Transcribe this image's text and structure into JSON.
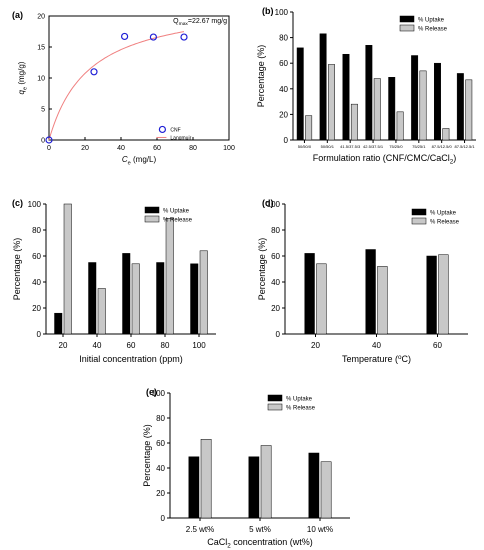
{
  "colors": {
    "uptake": "#000000",
    "release": "#c8c8c8",
    "langmuir": "#f08080",
    "cnf": "#1f1fd6"
  },
  "chart_data": [
    {
      "panel": "(a)",
      "type": "scatter",
      "annotation": "Q",
      "annotation_sub": "max",
      "annotation_rest": "=22.67 mg/g",
      "xlabel": "C",
      "xlabel_sub": "e",
      "xlabel_rest": " (mg/L)",
      "ylabel": "q",
      "ylabel_sub": "e",
      "ylabel_rest": " (mg/g)",
      "xlim": [
        0,
        100
      ],
      "ylim": [
        0,
        20
      ],
      "xticks": [
        "0",
        "20",
        "40",
        "60",
        "80",
        "100"
      ],
      "yticks": [
        "0",
        "5",
        "10",
        "15",
        "20"
      ],
      "points_name": "CNF",
      "fit_name": "Langmuir",
      "x": [
        0,
        25,
        42,
        58,
        75
      ],
      "y": [
        0,
        11,
        16.7,
        16.6,
        16.6
      ],
      "fit": {
        "qmax": 22.67,
        "KL": 0.045
      }
    },
    {
      "panel": "(b)",
      "type": "bar",
      "xlabel": "Formulation ratio (CNF/CMC/CaCl",
      "xlabel_sub": "2",
      "xlabel_rest": ")",
      "ylabel": "Percentage (%)",
      "ylim": [
        0,
        100
      ],
      "yticks": [
        "0",
        "20",
        "40",
        "60",
        "80",
        "100"
      ],
      "categories": [
        "50/50/0",
        "50/50/1",
        "41.5/37.5/3",
        "42.5/37.5/1",
        "75/25/0",
        "75/25/1",
        "87.5/12.5/0",
        "87.5/12.5/1"
      ],
      "series": [
        {
          "name": "% Uptake",
          "values": [
            72,
            83,
            67,
            74,
            49,
            66,
            60,
            52
          ]
        },
        {
          "name": "% Release",
          "values": [
            19,
            59,
            28,
            48,
            22,
            54,
            9,
            47
          ]
        }
      ]
    },
    {
      "panel": "(c)",
      "type": "bar",
      "xlabel": "Initial concentration (ppm)",
      "ylabel": "Percentage (%)",
      "ylim": [
        0,
        100
      ],
      "yticks": [
        "0",
        "20",
        "40",
        "60",
        "80",
        "100"
      ],
      "categories": [
        "20",
        "40",
        "60",
        "80",
        "100"
      ],
      "series": [
        {
          "name": "% Uptake",
          "values": [
            16,
            55,
            62,
            55,
            54
          ]
        },
        {
          "name": "% Release",
          "values": [
            100,
            35,
            54,
            89,
            64
          ]
        }
      ]
    },
    {
      "panel": "(d)",
      "type": "bar",
      "xlabel": "Temperature (",
      "xlabel_sup": "o",
      "xlabel_rest": "C)",
      "ylabel": "Percentage (%)",
      "ylim": [
        0,
        100
      ],
      "yticks": [
        "0",
        "20",
        "40",
        "60",
        "80",
        "100"
      ],
      "categories": [
        "20",
        "40",
        "60"
      ],
      "series": [
        {
          "name": "% Uptake",
          "values": [
            62,
            65,
            60
          ]
        },
        {
          "name": "% Release",
          "values": [
            54,
            52,
            61
          ]
        }
      ]
    },
    {
      "panel": "(e)",
      "type": "bar",
      "xlabel": "CaCl",
      "xlabel_sub": "2",
      "xlabel_rest": " concentration (wt%)",
      "ylabel": "Percentage (%)",
      "ylim": [
        0,
        100
      ],
      "yticks": [
        "0",
        "20",
        "40",
        "60",
        "80",
        "100"
      ],
      "categories": [
        "2.5 wt%",
        "5 wt%",
        "10 wt%"
      ],
      "series": [
        {
          "name": "% Uptake",
          "values": [
            49,
            49,
            52
          ]
        },
        {
          "name": "% Release",
          "values": [
            63,
            58,
            45
          ]
        }
      ]
    }
  ]
}
